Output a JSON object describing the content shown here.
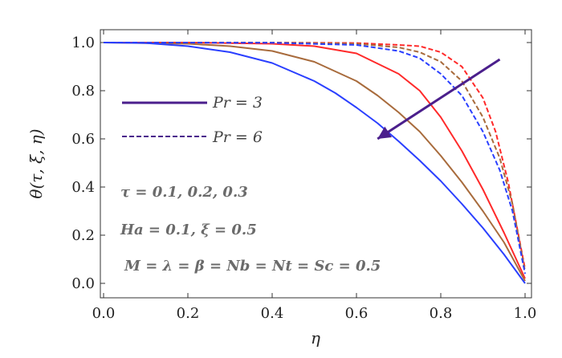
{
  "chart_data": {
    "type": "line",
    "xlabel": "η",
    "ylabel": "θ(τ, ξ, η)",
    "xlim": [
      0.0,
      1.0
    ],
    "ylim": [
      0.0,
      1.05
    ],
    "xticks": [
      "0.0",
      "0.2",
      "0.4",
      "0.6",
      "0.8",
      "1.0"
    ],
    "yticks": [
      "0.0",
      "0.2",
      "0.4",
      "0.6",
      "0.8",
      "1.0"
    ],
    "grid": false,
    "legend": {
      "placement": "upper-left",
      "entries": [
        {
          "label": "Pr = 3",
          "style": "solid",
          "color": "#4b1f8c"
        },
        {
          "label": "Pr = 6",
          "style": "dashed",
          "color": "#4b1f8c"
        }
      ]
    },
    "annotations": [
      "τ = 0.1, 0.2, 0.3",
      "Ha = 0.1, ξ = 0.5",
      "M = λ = β = Nb = Nt = Sc = 0.5"
    ],
    "arrow": {
      "from": [
        0.94,
        0.93
      ],
      "to": [
        0.65,
        0.6
      ],
      "color": "#4b1f8c"
    },
    "series": [
      {
        "style": "solid",
        "color": "#ff2a2a",
        "x": [
          0,
          0.2,
          0.4,
          0.5,
          0.6,
          0.7,
          0.75,
          0.8,
          0.85,
          0.9,
          0.95,
          1.0
        ],
        "y": [
          1.0,
          1.0,
          0.995,
          0.985,
          0.955,
          0.87,
          0.8,
          0.69,
          0.55,
          0.39,
          0.21,
          0.02
        ]
      },
      {
        "style": "solid",
        "color": "#a86b3c",
        "x": [
          0,
          0.2,
          0.3,
          0.4,
          0.5,
          0.6,
          0.65,
          0.7,
          0.75,
          0.8,
          0.85,
          0.9,
          0.95,
          1.0
        ],
        "y": [
          1.0,
          0.995,
          0.985,
          0.965,
          0.92,
          0.84,
          0.78,
          0.71,
          0.63,
          0.53,
          0.42,
          0.3,
          0.17,
          0.01
        ]
      },
      {
        "style": "solid",
        "color": "#2a3fff",
        "x": [
          0,
          0.1,
          0.2,
          0.3,
          0.4,
          0.5,
          0.55,
          0.6,
          0.65,
          0.7,
          0.75,
          0.8,
          0.85,
          0.9,
          0.95,
          1.0
        ],
        "y": [
          1.0,
          0.998,
          0.985,
          0.96,
          0.915,
          0.84,
          0.79,
          0.73,
          0.665,
          0.59,
          0.51,
          0.425,
          0.33,
          0.23,
          0.12,
          0.0
        ]
      },
      {
        "style": "dashed",
        "color": "#ff2a2a",
        "x": [
          0,
          0.4,
          0.6,
          0.7,
          0.75,
          0.8,
          0.85,
          0.9,
          0.93,
          0.96,
          1.0
        ],
        "y": [
          1.0,
          1.0,
          0.998,
          0.99,
          0.985,
          0.96,
          0.9,
          0.77,
          0.63,
          0.42,
          0.06
        ]
      },
      {
        "style": "dashed",
        "color": "#a86b3c",
        "x": [
          0,
          0.4,
          0.6,
          0.7,
          0.75,
          0.8,
          0.85,
          0.9,
          0.94,
          0.97,
          1.0
        ],
        "y": [
          1.0,
          1.0,
          0.995,
          0.98,
          0.96,
          0.92,
          0.84,
          0.69,
          0.52,
          0.33,
          0.05
        ]
      },
      {
        "style": "dashed",
        "color": "#2a3fff",
        "x": [
          0,
          0.4,
          0.6,
          0.7,
          0.75,
          0.8,
          0.85,
          0.9,
          0.94,
          0.97,
          1.0
        ],
        "y": [
          1.0,
          0.999,
          0.99,
          0.965,
          0.935,
          0.87,
          0.78,
          0.63,
          0.47,
          0.3,
          0.04
        ]
      }
    ]
  }
}
